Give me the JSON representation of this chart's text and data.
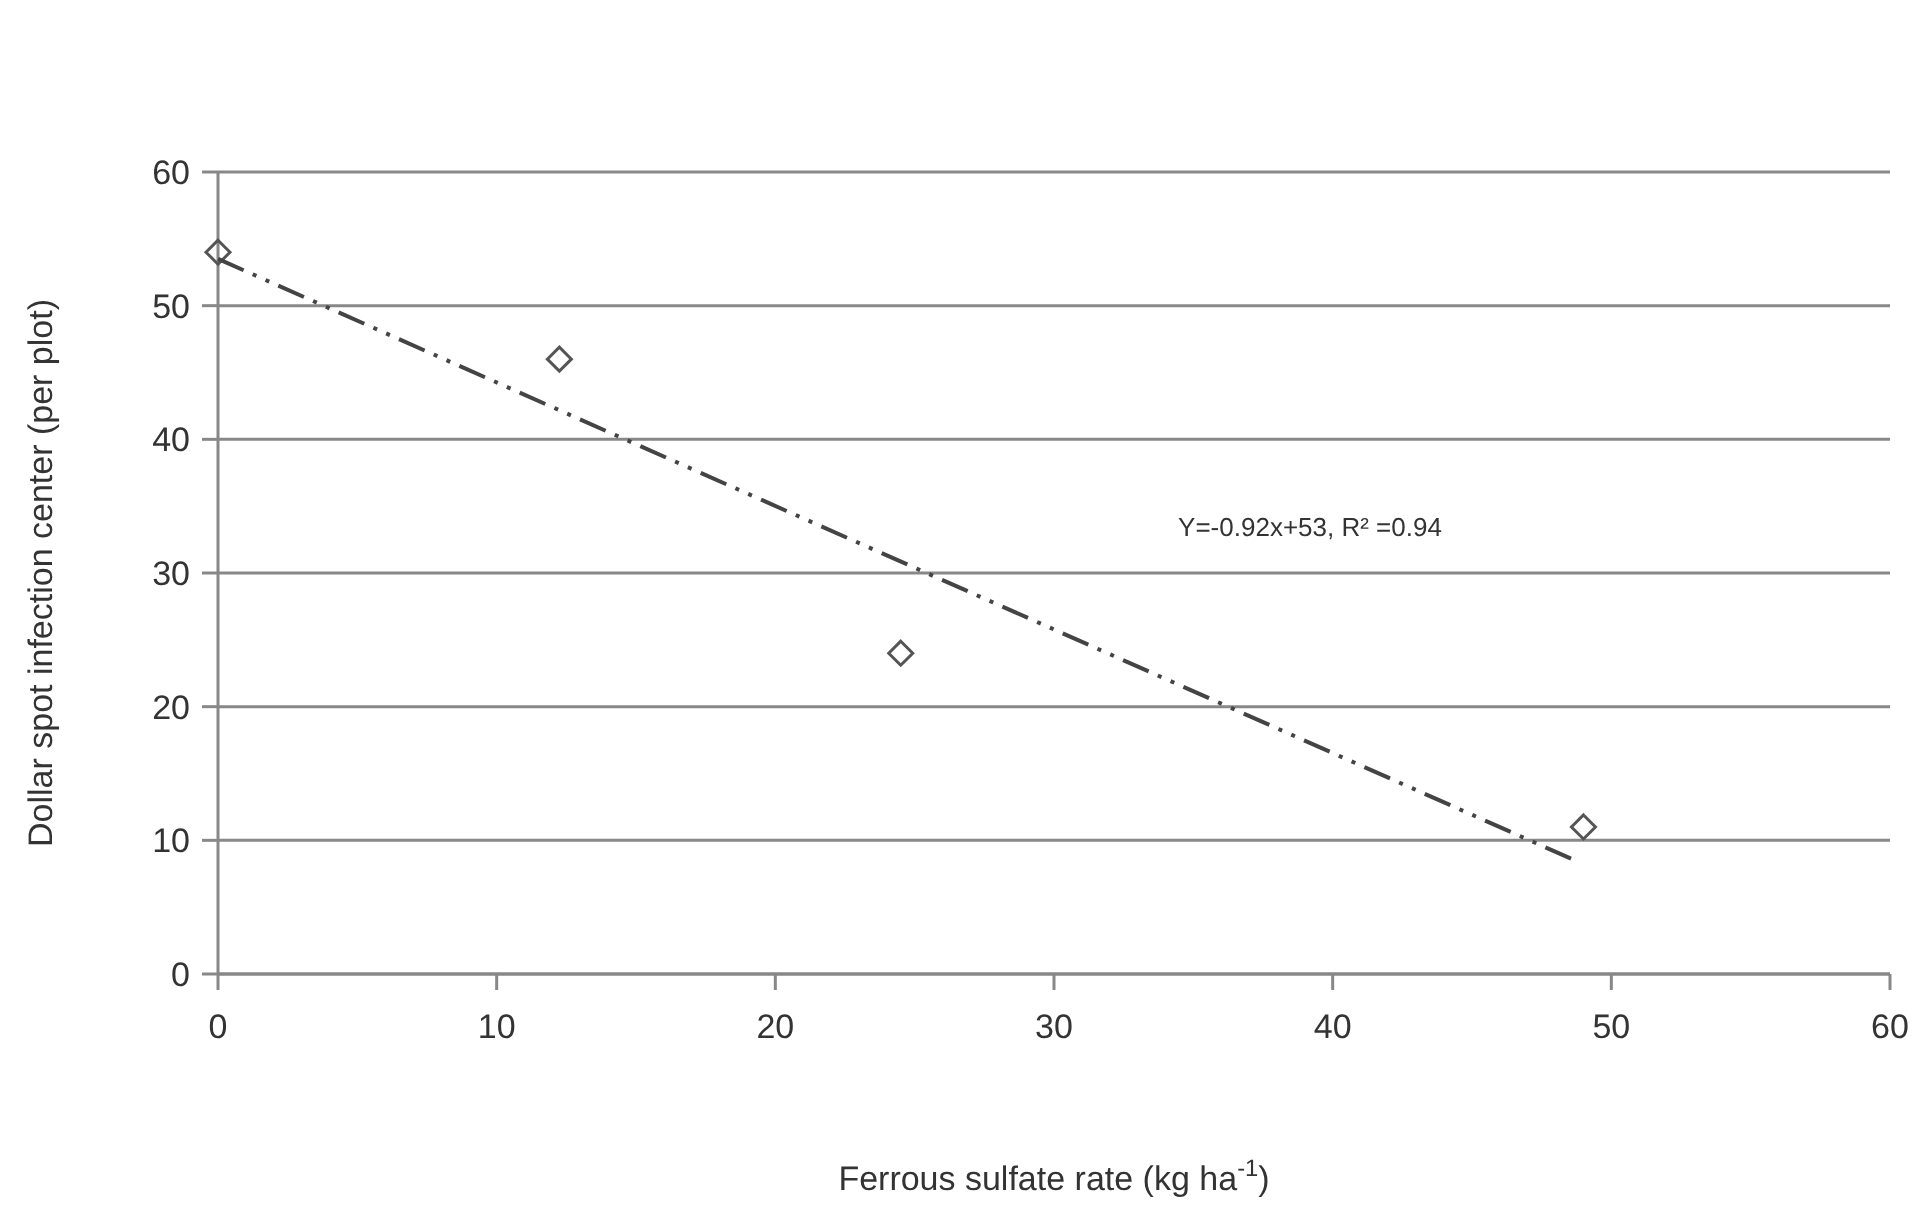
{
  "chart_data": {
    "type": "scatter",
    "xlabel": "Ferrous sulfate rate (kg ha$^{-1}$)",
    "ylabel": "Dollar spot infection center (per plot)",
    "x": [
      0,
      12.25,
      24.5,
      49
    ],
    "series": [
      {
        "color": "#555555",
        "values": [
          54,
          46,
          24,
          11
        ],
        "marker": "diamond"
      },
      {
        "type": "line",
        "color": "#444444",
        "x": [
          0,
          48.8
        ],
        "values": [
          53.5,
          8.4
        ],
        "line_style": "dashed",
        "marker": "none"
      }
    ],
    "xlim": [
      0,
      60
    ],
    "xticks": [
      0,
      10,
      20,
      30,
      40,
      50,
      60
    ],
    "ylim": [
      0,
      60
    ],
    "yticks": [
      0,
      10,
      20,
      30,
      40,
      50,
      60
    ],
    "grid": "y",
    "annotations": [
      "Y=-0.92x+53, R² =0.94"
    ]
  }
}
